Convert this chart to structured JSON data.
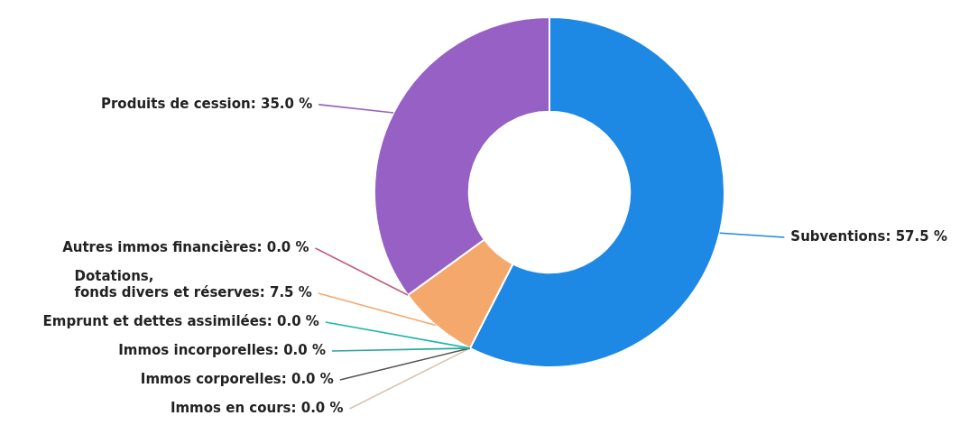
{
  "chart_data": {
    "type": "donut",
    "categories": [
      "Subventions",
      "Immos en cours",
      "Immos corporelles",
      "Immos incorporelles",
      "Emprunt et dettes assimilées",
      "Dotations, fonds divers et réserves",
      "Autres immos financières",
      "Produits de cession"
    ],
    "values": [
      57.5,
      0,
      0,
      0,
      0,
      7.5,
      0,
      35
    ],
    "value_labels": [
      ": 57.5 %",
      ": 0.0 %",
      ": 0.0 %",
      ": 0.0 %",
      ": 0.0 %",
      ": 7.5 %",
      ": 0.0 %",
      ": 35.0 %"
    ],
    "colors": [
      "#1e88e5",
      "#d8c4b0",
      "#555555",
      "#26a69a",
      "#1fb5a8",
      "#f4a86c",
      "#c0607a",
      "#9760c4"
    ],
    "legend": false
  }
}
